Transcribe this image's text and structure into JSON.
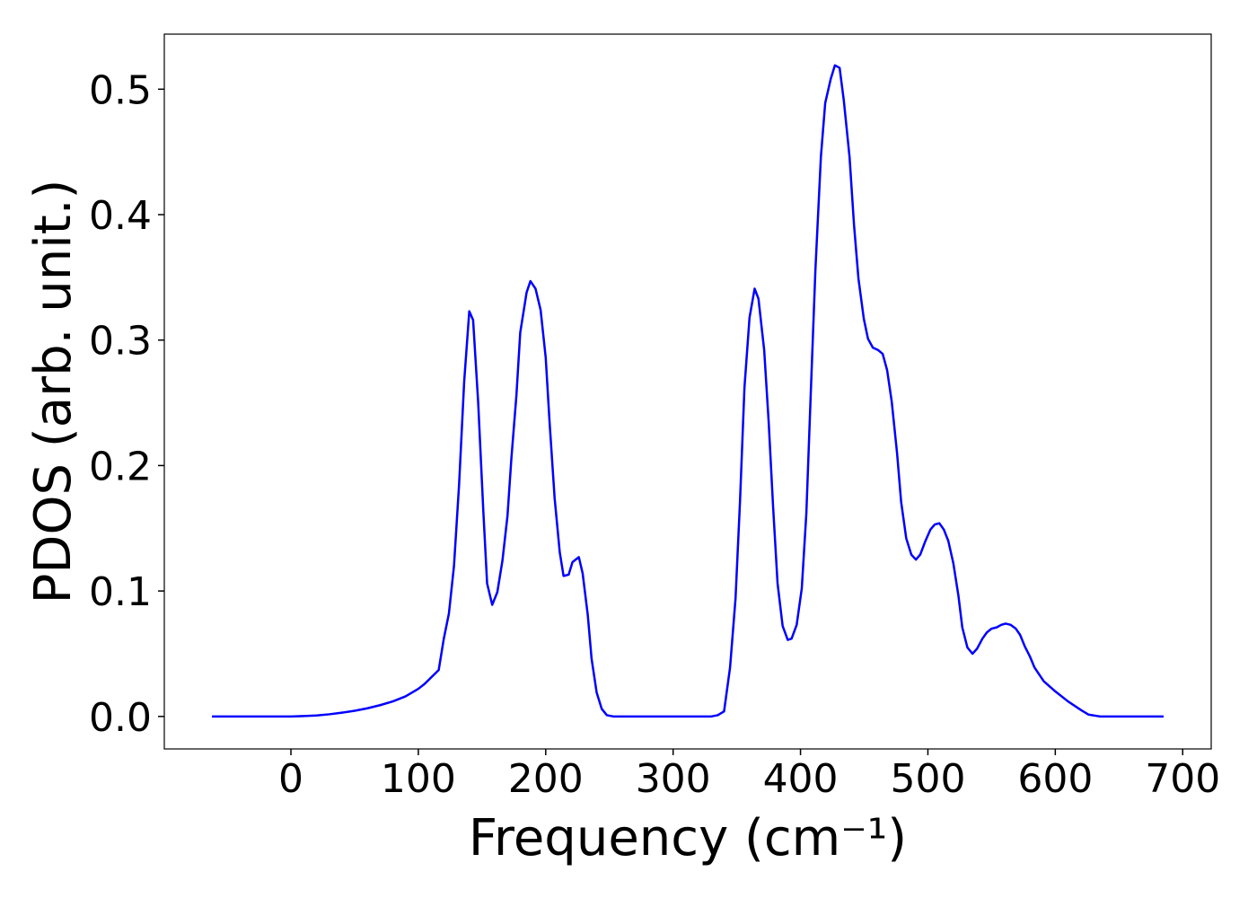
{
  "chart_data": {
    "type": "line",
    "xlabel": "Frequency (cm⁻¹)",
    "ylabel": "PDOS (arb. unit.)",
    "x": [
      -62,
      -40,
      -20,
      0,
      10,
      20,
      30,
      40,
      50,
      60,
      70,
      80,
      90,
      100,
      105,
      110,
      116,
      120,
      124,
      128,
      132,
      136,
      140,
      143,
      147,
      151,
      154,
      158,
      162,
      166,
      170,
      173,
      177,
      180,
      185,
      188,
      192,
      196,
      200,
      203,
      207,
      211,
      214,
      218,
      221,
      226,
      229,
      233,
      236,
      240,
      244,
      248,
      253,
      300,
      330,
      335,
      340,
      344.7,
      349,
      352.5,
      356,
      360,
      364,
      367,
      371.5,
      375,
      378.5,
      382,
      386,
      390,
      393,
      397,
      401,
      404.6,
      408,
      411.7,
      416,
      419.4,
      423.7,
      427,
      430.7,
      434,
      438.5,
      442,
      445.5,
      449.7,
      453,
      456.8,
      461,
      464.5,
      468,
      471.6,
      475.8,
      479,
      483,
      487,
      490.6,
      494,
      497.7,
      502,
      505.4,
      509,
      512.5,
      516,
      520,
      524,
      527,
      531,
      535,
      538.6,
      542.8,
      546.3,
      550,
      554,
      557.6,
      561,
      565,
      569,
      572.4,
      576,
      580,
      583.7,
      587,
      591,
      600,
      610,
      620.3,
      626,
      635,
      685
    ],
    "values": [
      0,
      0,
      0,
      0,
      0.0003,
      0.0008,
      0.0017,
      0.003,
      0.0045,
      0.0065,
      0.009,
      0.012,
      0.016,
      0.022,
      0.026,
      0.031,
      0.037,
      0.062,
      0.082,
      0.12,
      0.185,
      0.267,
      0.323,
      0.316,
      0.25,
      0.164,
      0.106,
      0.089,
      0.099,
      0.124,
      0.16,
      0.205,
      0.256,
      0.306,
      0.338,
      0.347,
      0.341,
      0.324,
      0.286,
      0.235,
      0.174,
      0.131,
      0.112,
      0.113,
      0.123,
      0.127,
      0.114,
      0.081,
      0.046,
      0.019,
      0.006,
      0.001,
      0,
      0,
      0,
      0.001,
      0.004,
      0.039,
      0.094,
      0.171,
      0.262,
      0.318,
      0.341,
      0.333,
      0.292,
      0.235,
      0.167,
      0.106,
      0.072,
      0.061,
      0.062,
      0.073,
      0.102,
      0.162,
      0.256,
      0.356,
      0.446,
      0.489,
      0.508,
      0.519,
      0.517,
      0.491,
      0.446,
      0.392,
      0.349,
      0.317,
      0.301,
      0.294,
      0.292,
      0.289,
      0.276,
      0.251,
      0.21,
      0.171,
      0.142,
      0.129,
      0.125,
      0.129,
      0.139,
      0.149,
      0.153,
      0.154,
      0.149,
      0.14,
      0.122,
      0.096,
      0.071,
      0.055,
      0.05,
      0.054,
      0.062,
      0.067,
      0.07,
      0.071,
      0.073,
      0.074,
      0.073,
      0.07,
      0.065,
      0.056,
      0.048,
      0.039,
      0.034,
      0.028,
      0.02,
      0.012,
      0.005,
      0.0015,
      0,
      0
    ],
    "color": "#0000ff",
    "xlim": [
      -99.4,
      722.4
    ],
    "xticks": [
      0,
      100,
      200,
      300,
      400,
      500,
      600,
      700
    ],
    "ylim": [
      -0.0259,
      0.5439
    ],
    "yticks": [
      {
        "value": 0,
        "label": "0.0"
      },
      0.1,
      0.2,
      0.3,
      0.4,
      0.5
    ],
    "grid": false
  }
}
